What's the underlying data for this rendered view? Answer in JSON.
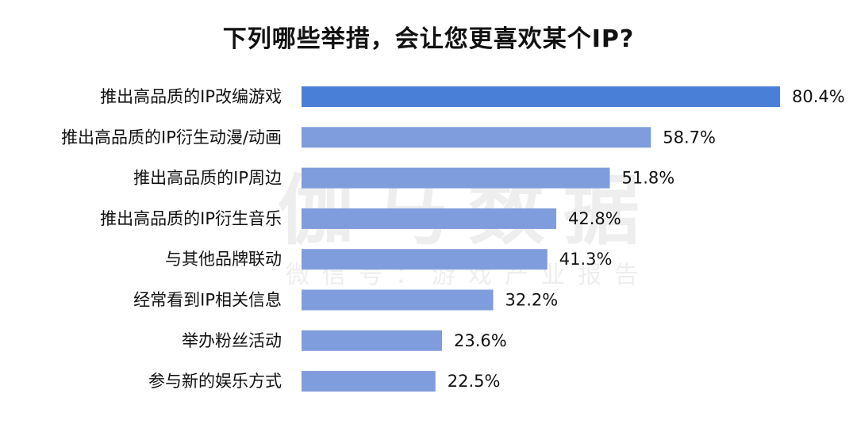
{
  "chart_data": {
    "type": "bar",
    "orientation": "horizontal",
    "title": "下列哪些举措，会让您更喜欢某个IP?",
    "categories": [
      "推出高品质的IP改编游戏",
      "推出高品质的IP衍生动漫/动画",
      "推出高品质的IP周边",
      "推出高品质的IP衍生音乐",
      "与其他品牌联动",
      "经常看到IP相关信息",
      "举办粉丝活动",
      "参与新的娱乐方式"
    ],
    "values": [
      80.4,
      58.7,
      51.8,
      42.8,
      41.3,
      32.2,
      23.6,
      22.5
    ],
    "value_labels": [
      "80.4%",
      "58.7%",
      "51.8%",
      "42.8%",
      "41.3%",
      "32.2%",
      "23.6%",
      "22.5%"
    ],
    "xlim": [
      0,
      80.4
    ],
    "grid": false,
    "colors": {
      "highlight_bar": "#4a7fd8",
      "bar": "#7f9cdd",
      "label_text": "#111111"
    }
  },
  "watermark": {
    "main": "伽马数据",
    "sub": "微信号：游戏产业报告"
  }
}
